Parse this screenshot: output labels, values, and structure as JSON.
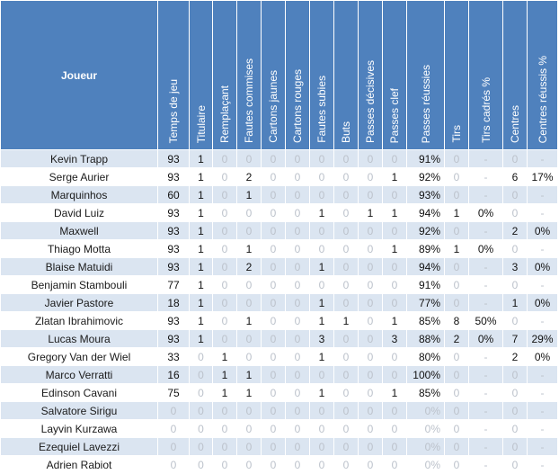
{
  "table": {
    "player_header": "Joueur",
    "columns": [
      "Temps de jeu",
      "Titulaire",
      "Remplaçant",
      "Fautes commises",
      "Cartons jaunes",
      "Cartons rouges",
      "Fautes subies",
      "Buts",
      "Passes décisives",
      "Passes clef",
      "Passes réussies",
      "Tirs",
      "Tirs cadrés %",
      "Centres",
      "Centres réussis %"
    ],
    "rows": [
      {
        "name": "Kevin Trapp",
        "cells": [
          "93",
          "1",
          "0",
          "0",
          "0",
          "0",
          "0",
          "0",
          "0",
          "0",
          "91%",
          "0",
          "-",
          "0",
          "-"
        ]
      },
      {
        "name": "Serge Aurier",
        "cells": [
          "93",
          "1",
          "0",
          "2",
          "0",
          "0",
          "0",
          "0",
          "0",
          "1",
          "92%",
          "0",
          "-",
          "6",
          "17%"
        ]
      },
      {
        "name": "Marquinhos",
        "cells": [
          "60",
          "1",
          "0",
          "1",
          "0",
          "0",
          "0",
          "0",
          "0",
          "0",
          "93%",
          "0",
          "-",
          "0",
          "-"
        ]
      },
      {
        "name": "David Luiz",
        "cells": [
          "93",
          "1",
          "0",
          "0",
          "0",
          "0",
          "1",
          "0",
          "1",
          "1",
          "94%",
          "1",
          "0%",
          "0",
          "-"
        ]
      },
      {
        "name": "Maxwell",
        "cells": [
          "93",
          "1",
          "0",
          "0",
          "0",
          "0",
          "0",
          "0",
          "0",
          "0",
          "92%",
          "0",
          "-",
          "2",
          "0%"
        ]
      },
      {
        "name": "Thiago Motta",
        "cells": [
          "93",
          "1",
          "0",
          "1",
          "0",
          "0",
          "0",
          "0",
          "0",
          "1",
          "89%",
          "1",
          "0%",
          "0",
          "-"
        ]
      },
      {
        "name": "Blaise Matuidi",
        "cells": [
          "93",
          "1",
          "0",
          "2",
          "0",
          "0",
          "1",
          "0",
          "0",
          "0",
          "94%",
          "0",
          "-",
          "3",
          "0%"
        ]
      },
      {
        "name": "Benjamin Stambouli",
        "cells": [
          "77",
          "1",
          "0",
          "0",
          "0",
          "0",
          "0",
          "0",
          "0",
          "0",
          "91%",
          "0",
          "-",
          "0",
          "-"
        ]
      },
      {
        "name": "Javier Pastore",
        "cells": [
          "18",
          "1",
          "0",
          "0",
          "0",
          "0",
          "1",
          "0",
          "0",
          "0",
          "77%",
          "0",
          "-",
          "1",
          "0%"
        ]
      },
      {
        "name": "Zlatan Ibrahimovic",
        "cells": [
          "93",
          "1",
          "0",
          "1",
          "0",
          "0",
          "1",
          "1",
          "0",
          "1",
          "85%",
          "8",
          "50%",
          "0",
          "-"
        ]
      },
      {
        "name": "Lucas Moura",
        "cells": [
          "93",
          "1",
          "0",
          "0",
          "0",
          "0",
          "3",
          "0",
          "0",
          "3",
          "88%",
          "2",
          "0%",
          "7",
          "29%"
        ]
      },
      {
        "name": "Gregory Van der Wiel",
        "cells": [
          "33",
          "0",
          "1",
          "0",
          "0",
          "0",
          "1",
          "0",
          "0",
          "0",
          "80%",
          "0",
          "-",
          "2",
          "0%"
        ]
      },
      {
        "name": "Marco Verratti",
        "cells": [
          "16",
          "0",
          "1",
          "1",
          "0",
          "0",
          "0",
          "0",
          "0",
          "0",
          "100%",
          "0",
          "-",
          "0",
          "-"
        ]
      },
      {
        "name": "Edinson Cavani",
        "cells": [
          "75",
          "0",
          "1",
          "1",
          "0",
          "0",
          "1",
          "0",
          "0",
          "1",
          "85%",
          "0",
          "-",
          "0",
          "-"
        ]
      },
      {
        "name": "Salvatore Sirigu",
        "cells": [
          "0",
          "0",
          "0",
          "0",
          "0",
          "0",
          "0",
          "0",
          "0",
          "0",
          "0%",
          "0",
          "-",
          "0",
          "-"
        ]
      },
      {
        "name": "Layvin Kurzawa",
        "cells": [
          "0",
          "0",
          "0",
          "0",
          "0",
          "0",
          "0",
          "0",
          "0",
          "0",
          "0%",
          "0",
          "-",
          "0",
          "-"
        ]
      },
      {
        "name": "Ezequiel Lavezzi",
        "cells": [
          "0",
          "0",
          "0",
          "0",
          "0",
          "0",
          "0",
          "0",
          "0",
          "0",
          "0%",
          "0",
          "-",
          "0",
          "-"
        ]
      },
      {
        "name": "Adrien Rabiot",
        "cells": [
          "0",
          "0",
          "0",
          "0",
          "0",
          "0",
          "0",
          "0",
          "0",
          "0",
          "0%",
          "0",
          "-",
          "0",
          "-"
        ]
      }
    ]
  },
  "colors": {
    "header_bg": "#4f81bd",
    "row_band": "#dbe5f1",
    "row_plain": "#ffffff",
    "muted_text": "#bcc2cb"
  }
}
